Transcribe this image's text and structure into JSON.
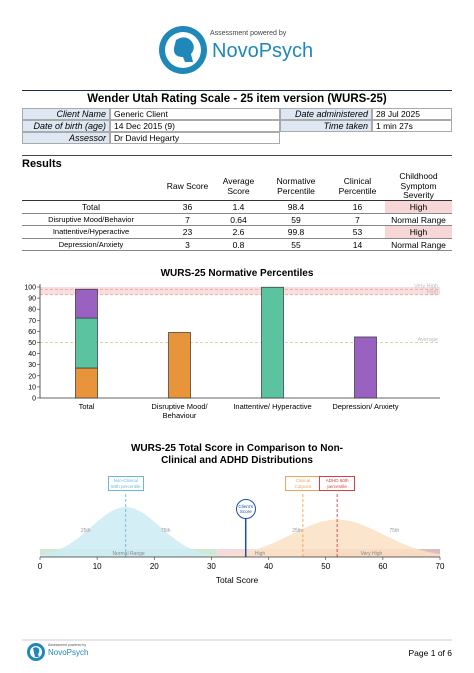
{
  "header": {
    "powered_by": "Assessment powered by",
    "brand": "NovoPsych"
  },
  "report": {
    "title": "Wender Utah Rating Scale - 25 item version (WURS-25)",
    "info": [
      [
        "Client Name",
        "Generic Client",
        "Date administered",
        "28 Jul 2025"
      ],
      [
        "Date of birth (age)",
        "14 Dec 2015 (9)",
        "Time taken",
        "1 min 27s"
      ],
      [
        "Assessor",
        "Dr David Hegarty"
      ]
    ]
  },
  "results": {
    "heading": "Results",
    "columns": [
      "Raw Score",
      "Average Score",
      "Normative Percentile",
      "Clinical Percentile",
      "Childhood Symptom Severity"
    ],
    "rows": [
      [
        "Total",
        36,
        1.4,
        98.4,
        16,
        "High"
      ],
      [
        "Disruptive Mood/Behavior",
        7,
        0.64,
        59,
        7,
        "Normal Range"
      ],
      [
        "Inattentive/Hyperactive",
        23,
        2.6,
        99.8,
        53,
        "High"
      ],
      [
        "Depression/Anxiety",
        3,
        0.8,
        55,
        14,
        "Normal Range"
      ]
    ],
    "severity_colors": [
      "#f6d6d6",
      null,
      "#f6d6d6",
      null
    ]
  },
  "chart_data": [
    {
      "type": "bar",
      "stacked": true,
      "title": "WURS-25 Normative Percentiles",
      "categories": [
        "Total",
        "Disruptive Mood/ Behaviour",
        "Inattentive/ Hyperactive",
        "Depression/ Anxiety"
      ],
      "series": [
        {
          "color": "#e8943a",
          "values": [
            27,
            59,
            null,
            null
          ]
        },
        {
          "color": "#5cc3a0",
          "values": [
            45,
            null,
            99.8,
            null
          ]
        },
        {
          "color": "#9a62c0",
          "values": [
            26,
            null,
            null,
            55
          ]
        }
      ],
      "ylim": [
        0,
        100
      ],
      "yticks": [
        0,
        10,
        20,
        30,
        40,
        50,
        60,
        70,
        80,
        90,
        100
      ],
      "references": [
        {
          "label": "Very High",
          "value": 98,
          "color": "#e59a9a"
        },
        {
          "label": "High",
          "value": 93,
          "color": "#e59a9a"
        },
        {
          "label": "Average",
          "value": 50,
          "color": "#c9c98a"
        }
      ],
      "band_color": "#f9dede"
    },
    {
      "type": "distribution",
      "title": "WURS-25 Total Score in Comparison to Non-Clinical and ADHD Distributions",
      "xlabel": "Total Score",
      "xlim": [
        0,
        70
      ],
      "xticks": [
        0,
        10,
        20,
        30,
        40,
        50,
        60,
        70
      ],
      "distributions": [
        {
          "mean": 15,
          "sd": 6,
          "color": "#cdebf5"
        },
        {
          "mean": 52,
          "sd": 8,
          "color": "#fbe0c4"
        }
      ],
      "ranges": [
        {
          "label": "Normal Range",
          "from": 0,
          "to": 31,
          "color": "#d2e8d4"
        },
        {
          "label": "High",
          "from": 31,
          "to": 46,
          "color": "#f5dbe0"
        },
        {
          "label": "Very High",
          "from": 46,
          "to": 70,
          "color": "#d9bcbc"
        }
      ],
      "markers": [
        {
          "label": "Non-Clinical 50th percentile",
          "x": 15,
          "color": "#6ab8dc"
        },
        {
          "label": "Client's Score",
          "x": 36,
          "color": "#1c4fa8"
        },
        {
          "label": "Clinical Cutpoint",
          "x": 46,
          "color": "#eba55a"
        },
        {
          "label": "ADHD 50th percentile",
          "x": 52,
          "color": "#d64040"
        }
      ],
      "percentile_labels": [
        {
          "label": "25th",
          "x": 8
        },
        {
          "label": "75th",
          "x": 22
        },
        {
          "label": "25th",
          "x": 45
        },
        {
          "label": "75th",
          "x": 62
        }
      ]
    }
  ],
  "footer": {
    "powered_by": "Assessment powered by",
    "brand": "NovoPsych",
    "page": "Page 1 of 6"
  }
}
